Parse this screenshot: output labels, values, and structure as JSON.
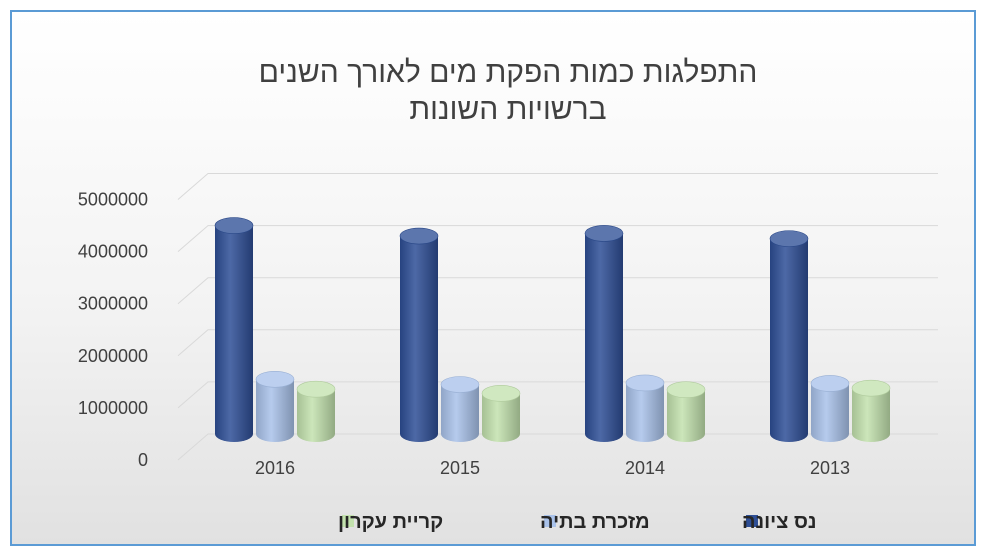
{
  "chart_data": {
    "type": "bar",
    "title": [
      "התפלגות כמות הפקת מים לאורך השנים",
      "ברשויות השונות"
    ],
    "categories": [
      "2016",
      "2015",
      "2014",
      "2013"
    ],
    "series": [
      {
        "name": "נס ציונה",
        "values": [
          4000000,
          3800000,
          3850000,
          3750000
        ],
        "color": "#2e4f96"
      },
      {
        "name": "מזכרת בתיה",
        "values": [
          1050000,
          950000,
          980000,
          970000
        ],
        "color": "#a9c2ea"
      },
      {
        "name": "קריית עקרון",
        "values": [
          860000,
          780000,
          850000,
          880000
        ],
        "color": "#c3e2ae"
      }
    ],
    "ylim": [
      0,
      5000000
    ],
    "yticks": [
      "0",
      "1000000",
      "2000000",
      "3000000",
      "4000000",
      "5000000"
    ],
    "grid": true,
    "legend": "bottom",
    "style": "3d-cylinder"
  }
}
